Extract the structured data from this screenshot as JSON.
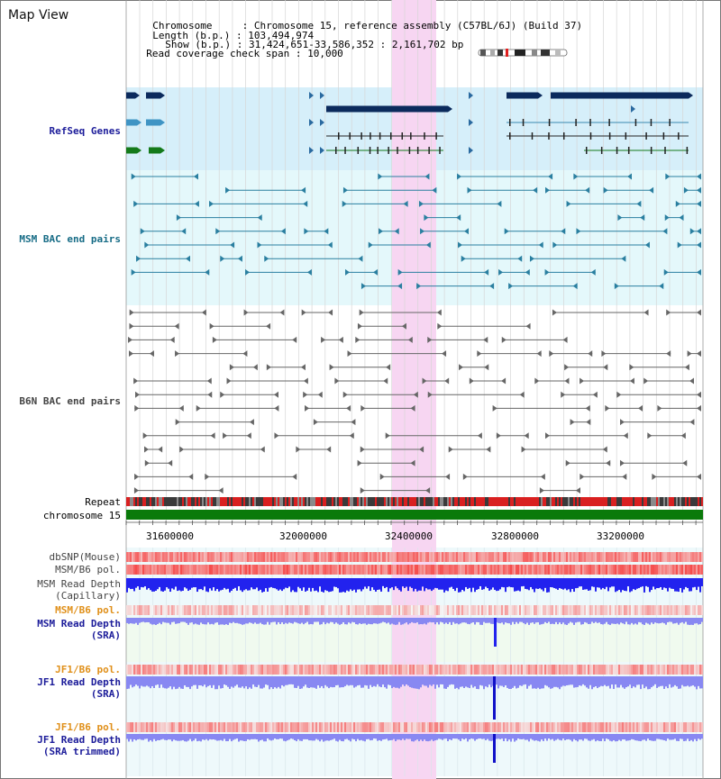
{
  "title": "Map View",
  "info": {
    "chromosome_label": "Chromosome",
    "chromosome_value": ": Chromosome 15, reference assembly (C57BL/6J) (Build 37)",
    "length_label": "Length (b.p.)",
    "length_value": ": 103,494,974",
    "show_label": "Show (b.p.)",
    "show_value": ": 31,424,651-33,586,352 : 2,161,702 bp",
    "coverage_label": "Read coverage check span",
    "coverage_value": ": 10,000"
  },
  "tracks": {
    "refseq": "RefSeq Genes",
    "msm_bac": "MSM BAC end pairs",
    "b6n_bac": "B6N BAC end pairs",
    "repeat": "Repeat",
    "chromosome": "chromosome 15",
    "dbsnp": "dbSNP(Mouse)",
    "msm_b6_pol1": "MSM/B6 pol.",
    "msm_depth_cap_1": "MSM Read Depth",
    "msm_depth_cap_2": "(Capillary)",
    "msm_b6_pol2": "MSM/B6 pol.",
    "msm_depth_sra_1": "MSM Read Depth",
    "msm_depth_sra_2": "(SRA)",
    "jf1_b6_pol1": "JF1/B6 pol.",
    "jf1_depth_sra_1": "JF1 Read Depth",
    "jf1_depth_sra_2": "(SRA)",
    "jf1_b6_pol2": "JF1/B6 pol.",
    "jf1_depth_trim_1": "JF1 Read Depth",
    "jf1_depth_trim_2": "(SRA trimmed)"
  },
  "axis_ticks": [
    "31600000",
    "32000000",
    "32400000",
    "32800000",
    "33200000"
  ],
  "colors": {
    "highlight": "#f7d6f2",
    "refseq_bg": "#d6effa",
    "msm_bg": "#e4f8fb",
    "gene_dark": "#0b2a5c",
    "gene_mid": "#3f94c4",
    "gene_green": "#147a1a",
    "chromosome_bar": "#0a7a0a",
    "depth_blue": "#2222ee",
    "depth_light": "#8888f2"
  }
}
